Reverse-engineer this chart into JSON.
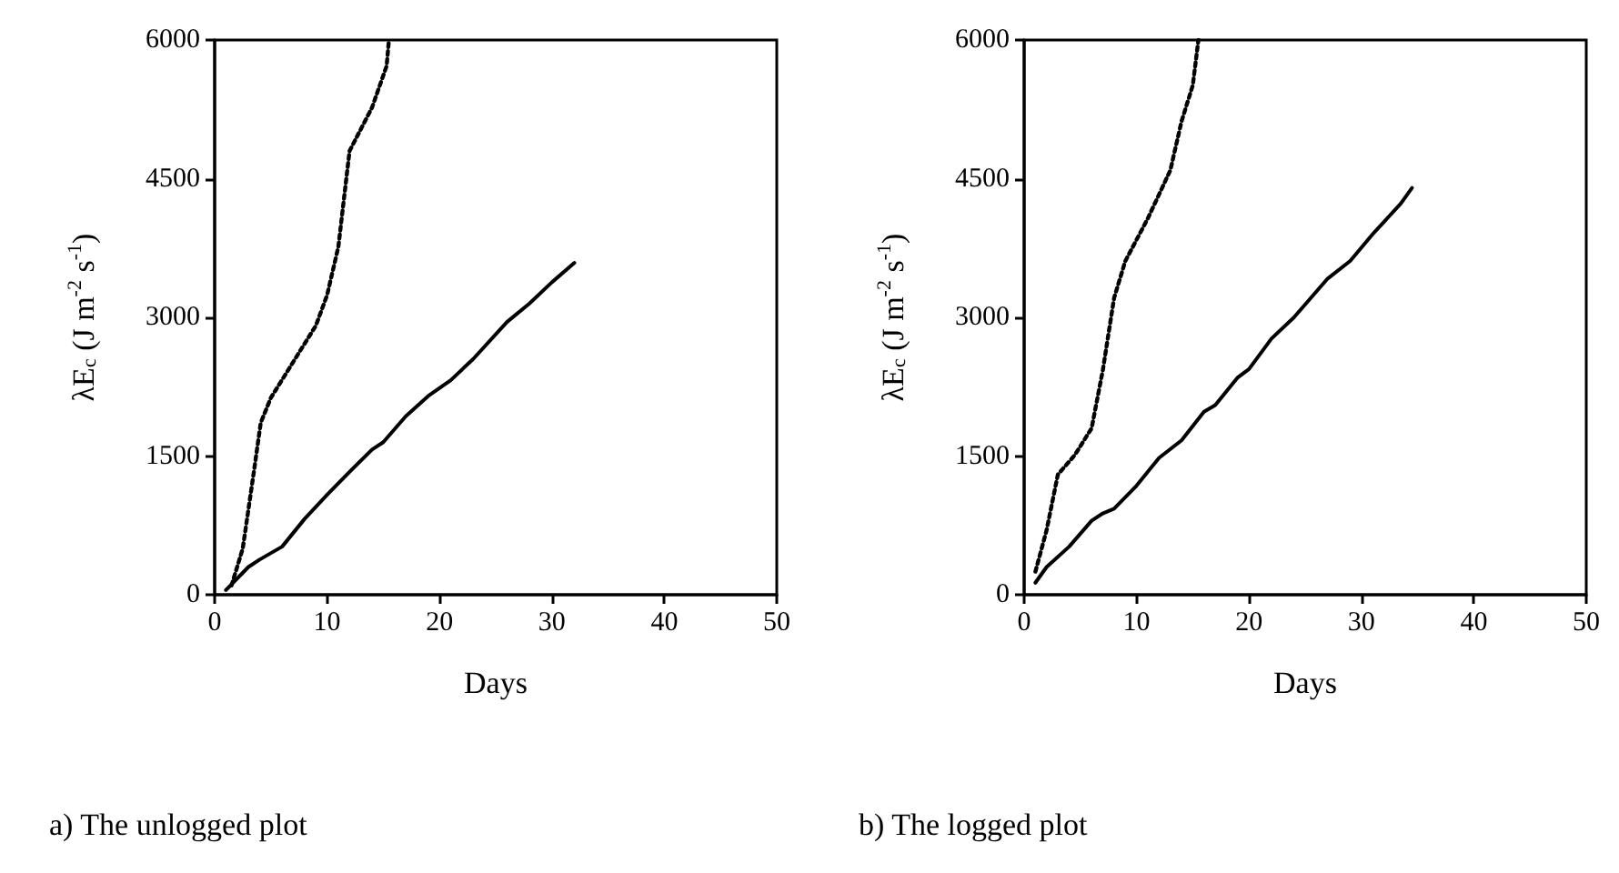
{
  "chart_data": [
    {
      "type": "line",
      "title": "a) The unlogged plot",
      "xlabel": "Days",
      "ylabel": "λE$_{c}$ (J m$^{-2}$ s$^{-1}$)",
      "xlim": [
        0,
        50
      ],
      "xticks": [
        0,
        10,
        20,
        30,
        40,
        50
      ],
      "ylim": [
        0,
        6000
      ],
      "yticks": [
        0,
        1500,
        3000,
        4500,
        6000
      ],
      "grid": false,
      "marker": "none",
      "series": [
        {
          "color": "#000000",
          "line_style": "solid",
          "x": [
            1,
            3,
            4,
            6,
            8,
            10,
            12,
            14,
            15,
            17,
            19,
            21,
            23,
            26,
            28,
            30,
            32
          ],
          "values": [
            50,
            300,
            380,
            520,
            820,
            1080,
            1330,
            1570,
            1650,
            1930,
            2150,
            2320,
            2550,
            2950,
            3150,
            3380,
            3590
          ]
        },
        {
          "color": "#000000",
          "line_style": "dotted",
          "x": [
            1.5,
            2.5,
            3.5,
            4.1,
            5,
            7,
            9,
            10,
            11,
            12,
            14,
            15.3,
            15.5
          ],
          "values": [
            100,
            500,
            1340,
            1860,
            2130,
            2520,
            2910,
            3240,
            3760,
            4800,
            5270,
            5720,
            6000
          ]
        }
      ]
    },
    {
      "type": "line",
      "title": "b) The logged plot",
      "xlabel": "Days",
      "ylabel": "λE$_{c}$ (J m$^{-2}$ s$^{-1}$)",
      "xlim": [
        0,
        50
      ],
      "xticks": [
        0,
        10,
        20,
        30,
        40,
        50
      ],
      "ylim": [
        0,
        6000
      ],
      "yticks": [
        0,
        1500,
        3000,
        4500,
        6000
      ],
      "grid": false,
      "marker": "none",
      "series": [
        {
          "color": "#000000",
          "line_style": "solid",
          "x": [
            1,
            2,
            4,
            6,
            7,
            8,
            10,
            12,
            14,
            16,
            17,
            19,
            20,
            22,
            24,
            26,
            27,
            29,
            31,
            33.5,
            34.5
          ],
          "values": [
            130,
            300,
            520,
            800,
            880,
            930,
            1180,
            1480,
            1670,
            1980,
            2050,
            2350,
            2440,
            2770,
            3000,
            3280,
            3420,
            3610,
            3900,
            4230,
            4400
          ]
        },
        {
          "color": "#000000",
          "line_style": "dotted",
          "x": [
            1,
            2,
            3,
            4.5,
            6,
            7,
            8,
            9,
            11,
            13,
            14,
            15,
            15.5
          ],
          "values": [
            250,
            700,
            1300,
            1510,
            1800,
            2430,
            3210,
            3610,
            4070,
            4590,
            5120,
            5510,
            6000
          ]
        }
      ]
    }
  ]
}
